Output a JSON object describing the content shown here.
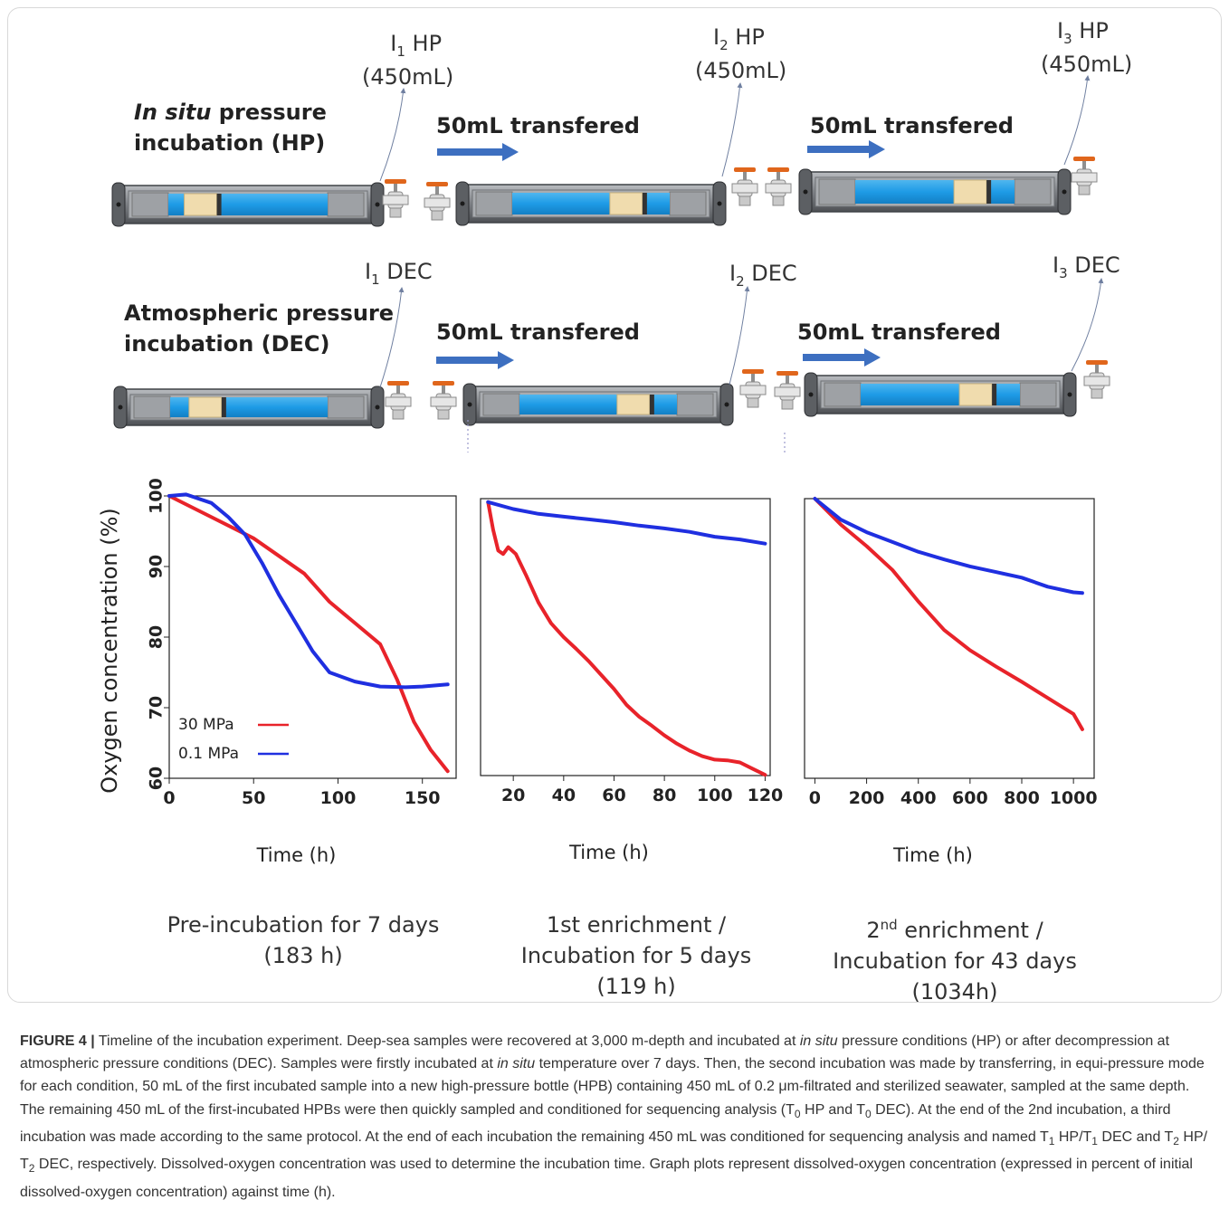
{
  "diagram": {
    "rows": [
      {
        "title_line1_italic": "In situ",
        "title_line1_rest": " pressure",
        "title_line2": "incubation (HP)",
        "bottles": [
          {
            "sub": "1",
            "label": "HP",
            "volume": "(450mL)"
          },
          {
            "sub": "2",
            "label": "HP",
            "volume": "(450mL)"
          },
          {
            "sub": "3",
            "label": "HP",
            "volume": "(450mL)"
          }
        ],
        "transfers": [
          "50mL transfered",
          "50mL transfered"
        ]
      },
      {
        "title_line1": "Atmospheric pressure",
        "title_line2": "incubation (DEC)",
        "bottles": [
          {
            "sub": "1",
            "label": "DEC"
          },
          {
            "sub": "2",
            "label": "DEC"
          },
          {
            "sub": "3",
            "label": "DEC"
          }
        ],
        "transfers": [
          "50mL transfered",
          "50mL transfered"
        ]
      }
    ],
    "bottle_letter": "I",
    "colors": {
      "water": "#1e9be6",
      "body": "#8b8e93",
      "arrow": "#3d6fc0",
      "valve": "#e0661c"
    }
  },
  "chart_data": [
    {
      "type": "line",
      "title": "",
      "xlabel": "Time (h)",
      "ylabel": "Oxygen concentration (%)",
      "xlim": [
        0,
        170
      ],
      "ylim": [
        60,
        100
      ],
      "xticks": [
        0,
        50,
        100,
        150
      ],
      "yticks": [
        60,
        70,
        80,
        90,
        100
      ],
      "legend": "bottom-left",
      "series": [
        {
          "name": "30 MPa",
          "color": "#e8232a",
          "x": [
            0,
            25,
            50,
            65,
            80,
            95,
            110,
            125,
            135,
            145,
            155,
            165
          ],
          "y": [
            100,
            97,
            94,
            91.5,
            89,
            85,
            82,
            79,
            74,
            68,
            64,
            61
          ]
        },
        {
          "name": "0.1 MPa",
          "color": "#1f2fe0",
          "x": [
            0,
            10,
            25,
            35,
            45,
            55,
            65,
            75,
            85,
            95,
            110,
            125,
            140,
            150,
            165
          ],
          "y": [
            100,
            100.2,
            99,
            97,
            94.5,
            90.5,
            86,
            82,
            78,
            75,
            73.7,
            73,
            72.9,
            73,
            73.3
          ]
        }
      ],
      "caption_line1": "Pre-incubation for 7 days",
      "caption_line2": "(183 h)"
    },
    {
      "type": "line",
      "title": "",
      "xlabel": "Time (h)",
      "ylabel": "",
      "xlim": [
        7,
        122
      ],
      "ylim": [
        60,
        100
      ],
      "xticks": [
        20,
        40,
        60,
        80,
        100,
        120
      ],
      "series": [
        {
          "color": "#e8232a",
          "x": [
            10,
            12,
            14,
            16,
            18,
            21,
            25,
            30,
            35,
            40,
            45,
            50,
            55,
            60,
            65,
            70,
            75,
            80,
            85,
            90,
            95,
            100,
            105,
            110,
            115,
            120
          ],
          "y": [
            99.5,
            95.5,
            92.5,
            92,
            93,
            92,
            89,
            85,
            82,
            80,
            78.3,
            76.5,
            74.5,
            72.5,
            70.2,
            68.5,
            67.2,
            65.8,
            64.6,
            63.6,
            62.8,
            62.3,
            62.2,
            61.9,
            61,
            60.1
          ]
        },
        {
          "color": "#1f2fe0",
          "x": [
            10,
            20,
            30,
            40,
            50,
            60,
            70,
            80,
            90,
            100,
            110,
            120
          ],
          "y": [
            99.5,
            98.5,
            97.8,
            97.4,
            97,
            96.6,
            96.1,
            95.7,
            95.2,
            94.5,
            94.1,
            93.5
          ]
        }
      ],
      "caption_line1": "1st enrichment /",
      "caption_line2": "Incubation for 5 days",
      "caption_line3": "(119 h)"
    },
    {
      "type": "line",
      "title": "",
      "xlabel": "Time (h)",
      "ylabel": "",
      "xlim": [
        -40,
        1080
      ],
      "ylim": [
        60,
        100
      ],
      "xticks": [
        0,
        200,
        400,
        600,
        800,
        1000
      ],
      "series": [
        {
          "color": "#e8232a",
          "x": [
            0,
            100,
            200,
            300,
            400,
            500,
            600,
            700,
            800,
            900,
            1000,
            1034
          ],
          "y": [
            100,
            96.3,
            93.2,
            89.8,
            85.3,
            81.2,
            78.3,
            76,
            73.8,
            71.5,
            69.2,
            67
          ]
        },
        {
          "color": "#1f2fe0",
          "x": [
            0,
            100,
            200,
            300,
            400,
            500,
            600,
            700,
            800,
            900,
            1000,
            1034
          ],
          "y": [
            100,
            97,
            95.2,
            93.8,
            92.4,
            91.3,
            90.3,
            89.5,
            88.7,
            87.4,
            86.6,
            86.5
          ]
        }
      ],
      "caption_line1_sup": "nd",
      "caption_line1_prefix": "2",
      "caption_line1_rest": " enrichment /",
      "caption_line2": "Incubation for 43 days",
      "caption_line3": "(1034h)"
    }
  ],
  "caption": {
    "fig_label": "FIGURE 4 |",
    "parts": [
      " Timeline of the incubation experiment. Deep-sea samples were recovered at 3,000 m-depth and incubated at ",
      "in situ",
      " pressure conditions (HP) or after decompression at atmospheric pressure conditions (DEC). Samples were firstly incubated at ",
      "in situ",
      " temperature over 7 days. Then, the second incubation was made by transferring, in equi-pressure mode for each condition, 50 mL of the first incubated sample into a new high-pressure bottle (HPB) containing 450 mL of 0.2 μm-filtrated and sterilized seawater, sampled at the same depth. The remaining 450 mL of the first-incubated HPBs were then quickly sampled and conditioned for sequencing analysis (T",
      "0",
      " HP and T",
      "0",
      " DEC). At the end of the 2nd incubation, a third incubation was made according to the same protocol. At the end of each incubation the remaining 450 mL was conditioned for sequencing analysis and named T",
      "1",
      " HP/T",
      "1",
      " DEC and T",
      "2",
      " HP/ T",
      "2",
      " DEC, respectively. Dissolved-oxygen concentration was used to determine the incubation time. Graph plots represent dissolved-oxygen concentration (expressed in percent of initial dissolved-oxygen concentration) against time (h)."
    ]
  }
}
